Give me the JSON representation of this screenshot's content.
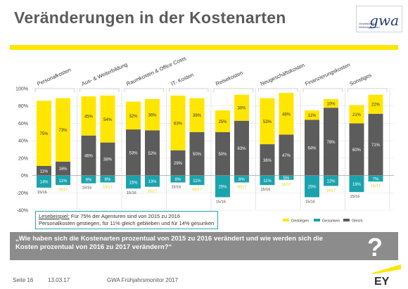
{
  "header": {
    "title": "Veränderungen  in der Kostenarten"
  },
  "logo": {
    "text_lines": [
      "Gesellschaft",
      "Werbeagenturen"
    ],
    "mark": "gwa"
  },
  "colors": {
    "gestiegen": "#ffe600",
    "gesunken": "#1ba3ad",
    "gleich": "#5c5c5c",
    "accent": "#ffe600"
  },
  "chart_data": {
    "type": "bar",
    "stacked": true,
    "ylim": [
      -40,
      100
    ],
    "yticks": [
      "-40%",
      "-20%",
      "0%",
      "20%",
      "40%",
      "60%",
      "80%",
      "100%"
    ],
    "yticks_values": [
      -40,
      -20,
      0,
      20,
      40,
      60,
      80,
      100
    ],
    "groups": [
      "Personalkosten",
      "Aus- & Weiterbildung",
      "Raumkosten & Office Costs",
      "IT- Kosten",
      "Reisekosten",
      "Neugeschäftskosten",
      "Finanzierungskosten",
      "Sonstiges"
    ],
    "x": [
      "15/16",
      "16/17"
    ],
    "series": [
      {
        "name": "Gestiegen",
        "values": [
          [
            75,
            73
          ],
          [
            45,
            54
          ],
          [
            32,
            36
          ],
          [
            63,
            39
          ],
          [
            25,
            30
          ],
          [
            53,
            48
          ],
          [
            11,
            10
          ],
          [
            21,
            22
          ]
        ]
      },
      {
        "name": "Gleich",
        "values": [
          [
            11,
            16
          ],
          [
            46,
            38
          ],
          [
            53,
            52
          ],
          [
            29,
            50
          ],
          [
            50,
            63
          ],
          [
            36,
            47
          ],
          [
            64,
            78
          ],
          [
            60,
            71
          ]
        ]
      },
      {
        "name": "Gesunken",
        "values": [
          [
            14,
            11
          ],
          [
            9,
            8
          ],
          [
            15,
            13
          ],
          [
            8,
            11
          ],
          [
            25,
            8
          ],
          [
            11,
            5
          ],
          [
            25,
            12
          ],
          [
            19,
            7
          ]
        ]
      }
    ],
    "legend": "bottom-right"
  },
  "example": {
    "label": "Lesebeispiel:",
    "line1": "Für 75% der Agenturen sind von 2015 zu 2016",
    "line2": "Personalkosten gestiegen, für 11% gleich geblieben und für 14% gesunken"
  },
  "question": {
    "text": "„Wie haben sich die Kostenarten prozentual von 2015 zu 2016 verändert und wie werden sich die Kosten prozentual von 2016 zu 2017 verändern?“",
    "mark": "?"
  },
  "footer": {
    "page": "Seite 16",
    "date": "13.03.17",
    "source": "GWA Frühjahrsmonitor 2017",
    "brand": "EY"
  }
}
